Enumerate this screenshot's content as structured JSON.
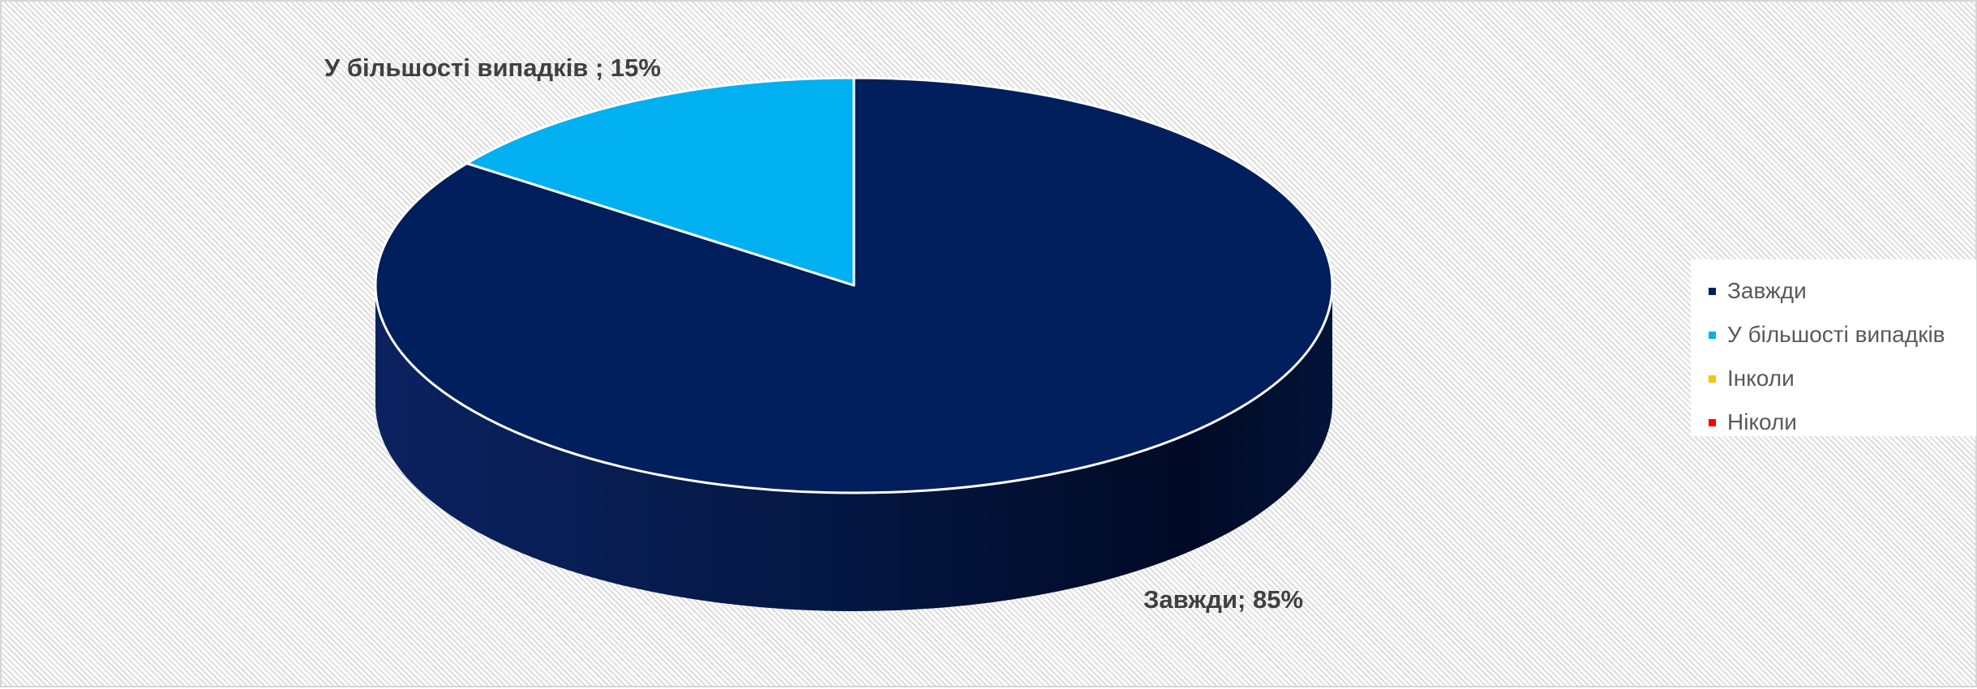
{
  "chart_data": {
    "type": "pie",
    "variant": "3d",
    "categories": [
      "Завжди",
      "У більшості випадків",
      "Інколи",
      "Ніколи"
    ],
    "values": [
      85,
      15,
      0,
      0
    ],
    "colors": [
      "#001f5c",
      "#00b0f0",
      "#ffc000",
      "#ff0000"
    ],
    "data_labels": [
      {
        "category": "Завжди",
        "text": "Завжди; 85%"
      },
      {
        "category": "У більшості випадків",
        "text": "У більшості випадків ; 15%"
      }
    ],
    "legend": {
      "position": "right",
      "entries": [
        "Завжди",
        "У більшості випадків",
        "Інколи",
        "Ніколи"
      ]
    },
    "start_angle": "12 o'clock",
    "direction": "clockwise"
  }
}
